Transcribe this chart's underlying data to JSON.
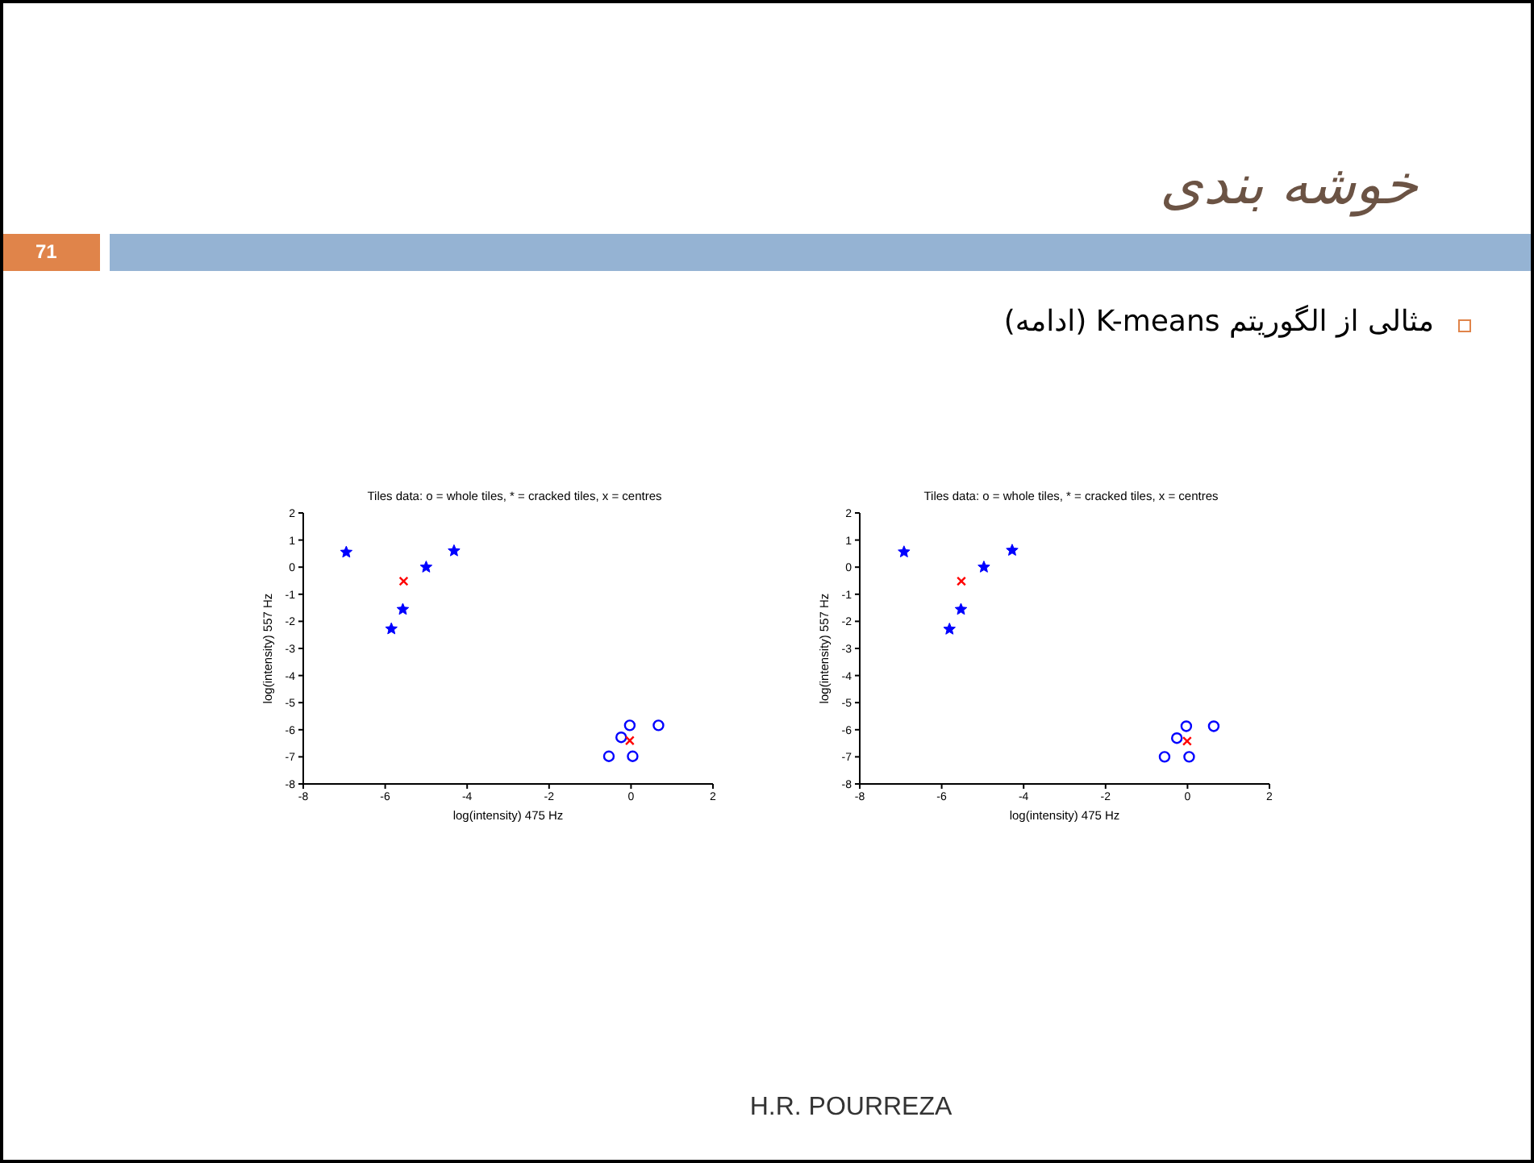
{
  "chart_data": [
    {
      "type": "scatter",
      "title": "Tiles data: o = whole tiles, * = cracked tiles, x = centres",
      "xlabel": "log(intensity) 475 Hz",
      "ylabel": "log(intensity) 557 Hz",
      "xlim": [
        -8,
        2
      ],
      "xticks": [
        -8,
        -6,
        -4,
        -2,
        0,
        2
      ],
      "ylim": [
        -8,
        2
      ],
      "yticks": [
        -8,
        -7,
        -6,
        -5,
        -4,
        -3,
        -2,
        -1,
        0,
        1,
        2
      ],
      "grid": false,
      "legend": false,
      "annotations": [
        "خوشه بندی",
        "71",
        "مثالی از الگوریتم K-means (ادامه)",
        "H.R. POURREZA"
      ],
      "series": [
        {
          "color": "#0000ff",
          "marker": "star",
          "x": [
            -6.95,
            -5.85,
            -5.57,
            -5.0,
            -4.32
          ],
          "values": [
            0.55,
            -2.28,
            -1.56,
            0,
            0.6
          ]
        },
        {
          "color": "#0000ff",
          "marker": "circle",
          "x": [
            -0.54,
            -0.24,
            -0.03,
            0.04,
            0.67
          ],
          "values": [
            -6.98,
            -6.28,
            -5.84,
            -6.98,
            -5.84
          ]
        },
        {
          "color": "#ff0000",
          "marker": "cross",
          "x": [
            -5.55,
            -0.03
          ],
          "values": [
            -0.52,
            -6.4
          ]
        }
      ]
    },
    {
      "type": "scatter",
      "title": "Tiles data: o = whole tiles, * = cracked tiles, x = centres",
      "xlabel": "log(intensity) 475 Hz",
      "ylabel": "log(intensity) 557 Hz",
      "xlim": [
        -8,
        2
      ],
      "xticks": [
        -8,
        -6,
        -4,
        -2,
        0,
        2
      ],
      "ylim": [
        -8,
        2
      ],
      "yticks": [
        -8,
        -7,
        -6,
        -5,
        -4,
        -3,
        -2,
        -1,
        0,
        1,
        2
      ],
      "grid": false,
      "legend": false,
      "series": [
        {
          "color": "#0000ff",
          "marker": "star",
          "x": [
            -6.92,
            -5.81,
            -5.53,
            -4.97,
            -4.28
          ],
          "values": [
            0.56,
            -2.29,
            -1.56,
            0,
            0.62
          ]
        },
        {
          "color": "#0000ff",
          "marker": "circle",
          "x": [
            -0.56,
            -0.26,
            -0.03,
            0.04,
            0.64
          ],
          "values": [
            -7.0,
            -6.31,
            -5.87,
            -7.0,
            -5.87
          ]
        },
        {
          "color": "#ff0000",
          "marker": "cross",
          "x": [
            -5.52,
            -0.01
          ],
          "values": [
            -0.52,
            -6.42
          ]
        }
      ]
    }
  ]
}
